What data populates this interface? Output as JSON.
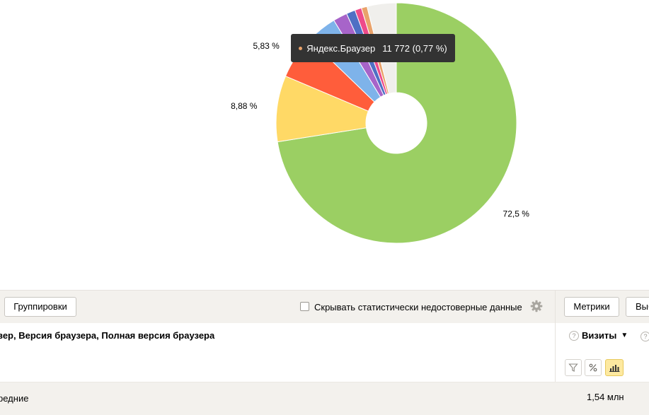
{
  "chart_data": {
    "type": "pie",
    "donut": true,
    "slices": [
      {
        "value": 72.5,
        "label": "72,5 %",
        "color": "#9bcf63"
      },
      {
        "value": 8.88,
        "label": "8,88 %",
        "color": "#ffd966"
      },
      {
        "value": 5.83,
        "label": "5,83 %",
        "color": "#ff5d3b"
      },
      {
        "value": 4.1,
        "label": "",
        "color": "#7eb3ea"
      },
      {
        "value": 1.9,
        "label": "",
        "color": "#a764c9"
      },
      {
        "value": 1.2,
        "label": "",
        "color": "#4f6fc4"
      },
      {
        "value": 0.9,
        "label": "",
        "color": "#ee4a8a"
      },
      {
        "value": 0.77,
        "label": "",
        "color": "#e9a26a"
      },
      {
        "value": 3.92,
        "label": "",
        "color": "#f0efec"
      }
    ],
    "tooltip": {
      "name": "Яндекс.Браузер",
      "value": "11 772 (0,77 %)",
      "color": "#e9a26a"
    }
  },
  "toolbar": {
    "groupings_label": "Группировки",
    "hide_unreliable_label": "Скрывать статистически недостоверные данные",
    "hide_unreliable_checked": false,
    "metrics_label": "Метрики",
    "select_label": "Выбрать"
  },
  "table": {
    "grouping_title": "вер, Версия браузера, Полная версия браузера",
    "metric_title": "Визиты",
    "sort_indicator": "▼",
    "help_glyph": "?",
    "totals_label": "редние",
    "totals_value": "1,54 млн"
  }
}
